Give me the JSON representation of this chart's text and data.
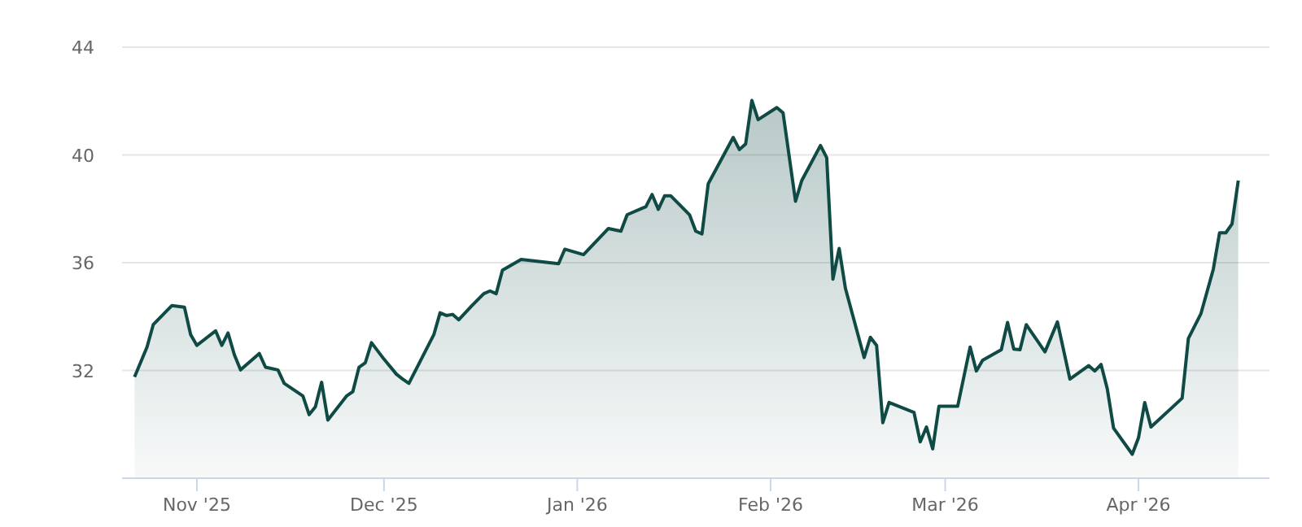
{
  "chart_data": {
    "type": "area",
    "x": [
      "2025-10-22",
      "2025-10-24",
      "2025-10-25",
      "2025-10-28",
      "2025-10-30",
      "2025-10-31",
      "2025-11-01",
      "2025-11-04",
      "2025-11-05",
      "2025-11-06",
      "2025-11-07",
      "2025-11-08",
      "2025-11-11",
      "2025-11-12",
      "2025-11-14",
      "2025-11-15",
      "2025-11-18",
      "2025-11-19",
      "2025-11-20",
      "2025-11-21",
      "2025-11-22",
      "2025-11-25",
      "2025-11-26",
      "2025-11-27",
      "2025-11-28",
      "2025-11-29",
      "2025-12-01",
      "2025-12-03",
      "2025-12-04",
      "2025-12-05",
      "2025-12-09",
      "2025-12-10",
      "2025-12-11",
      "2025-12-12",
      "2025-12-13",
      "2025-12-15",
      "2025-12-17",
      "2025-12-18",
      "2025-12-19",
      "2025-12-20",
      "2025-12-23",
      "2025-12-29",
      "2025-12-30",
      "2026-01-02",
      "2026-01-06",
      "2026-01-08",
      "2026-01-09",
      "2026-01-12",
      "2026-01-13",
      "2026-01-14",
      "2026-01-15",
      "2026-01-16",
      "2026-01-19",
      "2026-01-20",
      "2026-01-21",
      "2026-01-22",
      "2026-01-26",
      "2026-01-27",
      "2026-01-28",
      "2026-01-29",
      "2026-01-30",
      "2026-02-02",
      "2026-02-03",
      "2026-02-05",
      "2026-02-06",
      "2026-02-09",
      "2026-02-10",
      "2026-02-11",
      "2026-02-12",
      "2026-02-13",
      "2026-02-16",
      "2026-02-17",
      "2026-02-18",
      "2026-02-19",
      "2026-02-20",
      "2026-02-24",
      "2026-02-25",
      "2026-02-26",
      "2026-02-27",
      "2026-02-28",
      "2026-03-03",
      "2026-03-05",
      "2026-03-06",
      "2026-03-07",
      "2026-03-10",
      "2026-03-11",
      "2026-03-12",
      "2026-03-13",
      "2026-03-14",
      "2026-03-17",
      "2026-03-19",
      "2026-03-21",
      "2026-03-24",
      "2026-03-25",
      "2026-03-26",
      "2026-03-27",
      "2026-03-28",
      "2026-03-31",
      "2026-04-01",
      "2026-04-02",
      "2026-04-03",
      "2026-04-08",
      "2026-04-09",
      "2026-04-11",
      "2026-04-13",
      "2026-04-14",
      "2026-04-15",
      "2026-04-16",
      "2026-04-17"
    ],
    "series": [
      {
        "color": "#0f4a45",
        "values": [
          31.76,
          32.87,
          33.7,
          34.41,
          34.35,
          33.33,
          32.93,
          33.47,
          32.93,
          33.39,
          32.59,
          32.02,
          32.63,
          32.12,
          32.02,
          31.52,
          31.05,
          30.36,
          30.65,
          31.56,
          30.16,
          31.05,
          31.21,
          32.12,
          32.28,
          33.03,
          32.42,
          31.86,
          31.68,
          31.52,
          33.33,
          34.14,
          34.04,
          34.08,
          33.88,
          34.38,
          34.85,
          34.95,
          34.85,
          35.72,
          36.12,
          35.96,
          36.5,
          36.3,
          37.27,
          37.17,
          37.78,
          38.08,
          38.53,
          37.98,
          38.48,
          38.48,
          37.78,
          37.17,
          37.07,
          38.93,
          40.65,
          40.2,
          40.41,
          42.02,
          41.31,
          41.76,
          41.56,
          38.28,
          39.05,
          40.35,
          39.9,
          35.39,
          36.53,
          35.05,
          32.48,
          33.23,
          32.93,
          30.06,
          30.81,
          30.44,
          29.35,
          29.9,
          29.09,
          30.67,
          30.67,
          32.87,
          31.98,
          32.38,
          32.77,
          33.78,
          32.79,
          32.77,
          33.7,
          32.69,
          33.8,
          31.68,
          32.18,
          31.98,
          32.22,
          31.31,
          29.86,
          28.89,
          29.5,
          30.81,
          29.9,
          30.97,
          33.19,
          34.1,
          35.76,
          37.11,
          37.11,
          37.44,
          39.05
        ]
      }
    ],
    "xlim": [
      "2025-10-20",
      "2026-04-22"
    ],
    "xticks": [
      {
        "value": "2025-11-01",
        "label": "Nov '25"
      },
      {
        "value": "2025-12-01",
        "label": "Dec '25"
      },
      {
        "value": "2026-01-01",
        "label": "Jan '26"
      },
      {
        "value": "2026-02-01",
        "label": "Feb '26"
      },
      {
        "value": "2026-03-01",
        "label": "Mar '26"
      },
      {
        "value": "2026-04-01",
        "label": "Apr '26"
      }
    ],
    "ylim": [
      28,
      44
    ],
    "yticks": [
      32,
      36,
      40,
      44
    ],
    "grid": "y",
    "marker": "none",
    "line_style": "solid"
  }
}
